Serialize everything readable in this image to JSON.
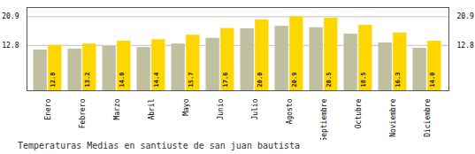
{
  "chart_data": {
    "type": "bar",
    "title": "Temperaturas Medias en santiuste de san juan bautista",
    "categories": [
      "Enero",
      "Febrero",
      "Marzo",
      "Abril",
      "Mayo",
      "Junio",
      "Julio",
      "Agosto",
      "Septiembre",
      "Octubre",
      "Noviembre",
      "Diciembre"
    ],
    "series": [
      {
        "color": "#C0BFA0",
        "values": [
          11.5,
          11.8,
          12.5,
          12.2,
          13.2,
          14.8,
          17.5,
          18.2,
          17.8,
          16.0,
          13.5,
          12.0
        ]
      },
      {
        "color": "#FFD700",
        "values": [
          12.8,
          13.2,
          14.0,
          14.4,
          15.7,
          17.6,
          20.0,
          20.9,
          20.5,
          18.5,
          16.3,
          14.0
        ],
        "data_labels": true,
        "value_labels": [
          "12.8",
          "13.2",
          "14.0",
          "14.4",
          "15.7",
          "17.6",
          "20.0",
          "20.9",
          "20.5",
          "18.5",
          "16.3",
          "14.0"
        ]
      }
    ],
    "ylim": [
      0,
      23.5
    ],
    "yticks": [
      12.8,
      20.9
    ],
    "y2lim": [
      0,
      23.5
    ],
    "y2ticks": [
      12.8,
      20.9
    ],
    "grid": true
  }
}
